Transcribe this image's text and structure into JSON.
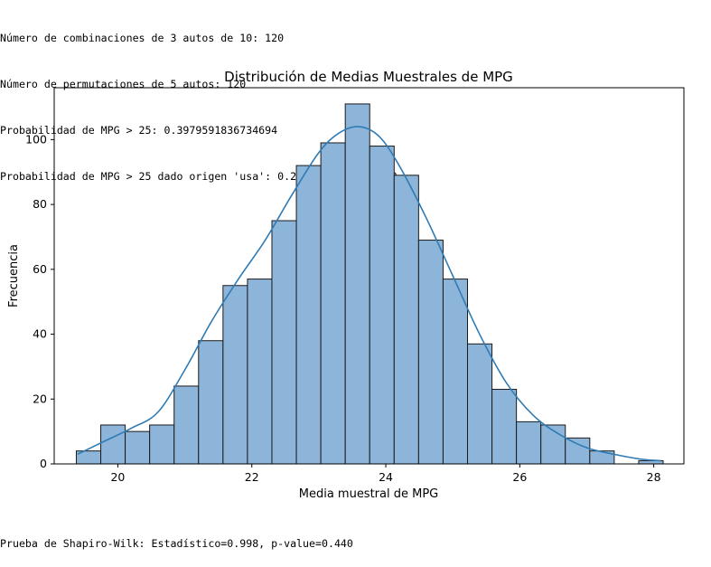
{
  "console_output": {
    "lines": [
      "Número de combinaciones de 3 autos de 10: 120",
      "Número de permutaciones de 5 autos: 120",
      "Probabilidad de MPG > 25: 0.3979591836734694",
      "Probabilidad de MPG > 25 dado origen 'usa': 0.22040816326530613"
    ],
    "footer": "Prueba de Shapiro-Wilk: Estadístico=0.998, p-value=0.440"
  },
  "chart_data": {
    "type": "bar",
    "title": "Distribución de Medias Muestrales de MPG",
    "xlabel": "Media muestral de MPG",
    "ylabel": "Frecuencia",
    "xlim": [
      19.05,
      28.45
    ],
    "ylim": [
      0,
      116
    ],
    "xticks": [
      20,
      22,
      24,
      26,
      28
    ],
    "yticks": [
      0,
      20,
      40,
      60,
      80,
      100
    ],
    "bin_edges": [
      19.38,
      19.745,
      20.11,
      20.475,
      20.84,
      21.205,
      21.57,
      21.935,
      22.3,
      22.665,
      23.03,
      23.395,
      23.76,
      24.125,
      24.49,
      24.855,
      25.22,
      25.585,
      25.95,
      26.315,
      26.68,
      27.045,
      27.41,
      27.775,
      28.14
    ],
    "values": [
      4,
      12,
      10,
      12,
      24,
      38,
      55,
      57,
      75,
      92,
      99,
      111,
      98,
      89,
      69,
      57,
      37,
      23,
      13,
      12,
      8,
      4,
      0,
      1
    ],
    "kde": {
      "x": [
        19.4,
        19.8,
        20.2,
        20.6,
        21.0,
        21.4,
        21.8,
        22.2,
        22.6,
        23.0,
        23.3,
        23.6,
        23.9,
        24.2,
        24.6,
        25.0,
        25.4,
        25.8,
        26.2,
        26.6,
        27.0,
        27.4,
        27.8,
        28.1
      ],
      "y": [
        3,
        7,
        11,
        16,
        29,
        44,
        57,
        69,
        83,
        96,
        102,
        104,
        101,
        92,
        76,
        58,
        40,
        25,
        15,
        9,
        5,
        3,
        1.5,
        1
      ]
    },
    "grid": false,
    "colors": {
      "bar_fill": "#8db5d9",
      "bar_edge": "#1a1a1a",
      "kde_line": "#2f7cb5"
    }
  }
}
